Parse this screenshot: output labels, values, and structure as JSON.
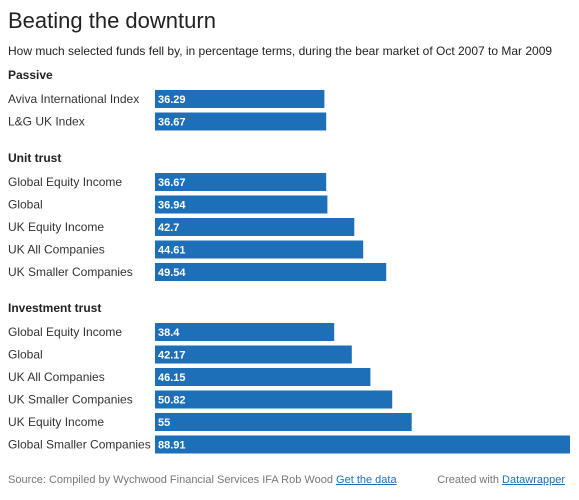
{
  "title": "Beating the downturn",
  "subtitle": "How much selected funds fell by, in percentage terms, during the bear market of Oct 2007 to Mar 2009",
  "footer": {
    "source_prefix": "Source: Compiled by Wychwood Financial Services IFA Rob Wood",
    "get_data_label": "Get the data",
    "created_with": "Created with",
    "datawrapper_label": "Datawrapper"
  },
  "colors": {
    "bar": "#1d70b7"
  },
  "chart_data": {
    "type": "bar",
    "orientation": "horizontal",
    "xlim": [
      0,
      88.91
    ],
    "groups": [
      {
        "name": "Passive",
        "categories": [
          "Aviva International Index",
          "L&G UK Index"
        ],
        "values": [
          36.29,
          36.67
        ]
      },
      {
        "name": "Unit trust",
        "categories": [
          "Global Equity Income",
          "Global",
          "UK Equity Income",
          "UK All Companies",
          "UK Smaller Companies"
        ],
        "values": [
          36.67,
          36.94,
          42.7,
          44.61,
          49.54
        ]
      },
      {
        "name": "Investment trust",
        "categories": [
          "Global Equity Income",
          "Global",
          "UK All Companies",
          "UK Smaller Companies",
          "UK Equity Income",
          "Global Smaller Companies"
        ],
        "values": [
          38.4,
          42.17,
          46.15,
          50.82,
          55,
          88.91
        ]
      }
    ]
  }
}
